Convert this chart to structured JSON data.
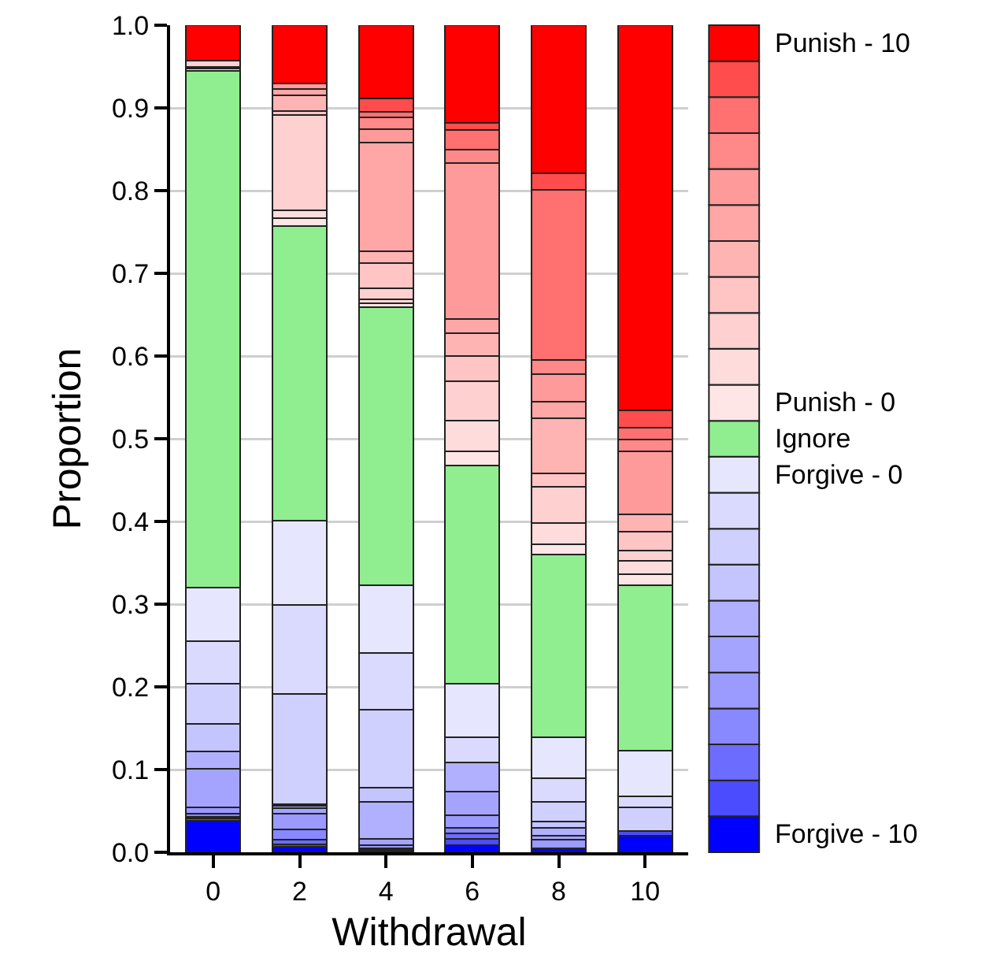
{
  "chart_data": {
    "type": "bar",
    "stacked": true,
    "xlabel": "Withdrawal",
    "ylabel": "Proportion",
    "categories": [
      "0",
      "2",
      "4",
      "6",
      "8",
      "10"
    ],
    "ylim": [
      0,
      1
    ],
    "yticks": [
      {
        "value": 0,
        "label": "0.0"
      },
      {
        "value": 0.1,
        "label": "0.1"
      },
      {
        "value": 0.2,
        "label": "0.2"
      },
      {
        "value": 0.3,
        "label": "0.3"
      },
      {
        "value": 0.4,
        "label": "0.4"
      },
      {
        "value": 0.5,
        "label": "0.5"
      },
      {
        "value": 0.6,
        "label": "0.6"
      },
      {
        "value": 0.7,
        "label": "0.7"
      },
      {
        "value": 0.8,
        "label": "0.8"
      },
      {
        "value": 0.9,
        "label": "0.9"
      },
      {
        "value": 1,
        "label": "1.0"
      }
    ],
    "grid": "y",
    "legend": "right",
    "series": [
      {
        "name": "Forgive - 10",
        "color": "#0000ff",
        "values": [
          0.038,
          0.007,
          0.001,
          0.009,
          0.005,
          0.02
        ]
      },
      {
        "color": "#4c4cff",
        "values": [
          0.003,
          0.003,
          0,
          0.007,
          0,
          0.006
        ]
      },
      {
        "color": "#6c6cff",
        "values": [
          0.002,
          0.005,
          0.002,
          0.007,
          0,
          0
        ]
      },
      {
        "color": "#8888ff",
        "values": [
          0.004,
          0.013,
          0.002,
          0.007,
          0,
          0
        ]
      },
      {
        "color": "#9a9aff",
        "values": [
          0.007,
          0.019,
          0.004,
          0.015,
          0.01,
          0
        ]
      },
      {
        "color": "#a4a4ff",
        "values": [
          0.047,
          0.006,
          0.007,
          0.028,
          0.005,
          0
        ]
      },
      {
        "color": "#b0b0ff",
        "values": [
          0.021,
          0.003,
          0.045,
          0.036,
          0.01,
          0
        ]
      },
      {
        "color": "#c4c4ff",
        "values": [
          0.033,
          0.002,
          0.017,
          0,
          0.007,
          0
        ]
      },
      {
        "color": "#d0d0ff",
        "values": [
          0.049,
          0.133,
          0.094,
          0,
          0.024,
          0.028
        ]
      },
      {
        "color": "#dadaff",
        "values": [
          0.051,
          0.108,
          0.069,
          0.03,
          0.029,
          0.014
        ]
      },
      {
        "name": "Forgive - 0",
        "color": "#e6e6ff",
        "values": [
          0.065,
          0.102,
          0.082,
          0.065,
          0.049,
          0.055
        ]
      },
      {
        "name": "Ignore",
        "color": "#90ee90",
        "values": [
          0.625,
          0.356,
          0.336,
          0.264,
          0.221,
          0.2
        ]
      },
      {
        "name": "Punish - 0",
        "color": "#ffe6e6",
        "values": [
          0.003,
          0.01,
          0.005,
          0.017,
          0.012,
          0.013
        ]
      },
      {
        "color": "#ffdcdc",
        "values": [
          0.002,
          0.009,
          0.005,
          0.037,
          0.026,
          0.016
        ]
      },
      {
        "color": "#ffd0d0",
        "values": [
          0.007,
          0.115,
          0.013,
          0.048,
          0.044,
          0.013
        ]
      },
      {
        "color": "#ffc4c4",
        "values": [
          0,
          0.005,
          0.03,
          0.03,
          0.016,
          0.023
        ]
      },
      {
        "color": "#ffb4b4",
        "values": [
          0,
          0.019,
          0.015,
          0.028,
          0.067,
          0.021
        ]
      },
      {
        "color": "#ffa6a6",
        "values": [
          0,
          0.008,
          0.131,
          0.017,
          0.02,
          0
        ]
      },
      {
        "color": "#ff9a9a",
        "values": [
          0,
          0.007,
          0.016,
          0.188,
          0.033,
          0.076
        ]
      },
      {
        "color": "#ff8888",
        "values": [
          0,
          0,
          0.015,
          0.017,
          0.017,
          0.014
        ]
      },
      {
        "color": "#ff7070",
        "values": [
          0,
          0,
          0.006,
          0.023,
          0.206,
          0.014
        ]
      },
      {
        "color": "#ff4c4c",
        "values": [
          0,
          0,
          0.016,
          0.009,
          0.02,
          0.021
        ]
      },
      {
        "name": "Punish - 10",
        "color": "#ff0000",
        "values": [
          0.043,
          0.07,
          0.089,
          0.118,
          0.179,
          0.466
        ]
      }
    ]
  }
}
